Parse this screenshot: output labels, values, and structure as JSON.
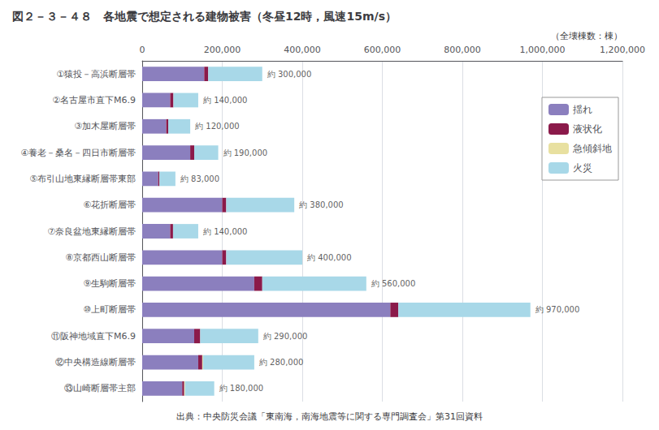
{
  "chart_data": {
    "type": "bar",
    "orientation": "horizontal",
    "stacked": true,
    "title": "図２－３－４８　各地震で想定される建物被害（冬昼12時，風速15m/s）",
    "xlabel": "（全壊棟数：棟）",
    "source": "出典：中央防災会議「東南海，南海地震等に関する専門調査会」第31回資料",
    "categories": [
      "①猿投－高浜断層帯",
      "②名古屋市直下M6.9",
      "③加木屋断層帯",
      "④養老－桑名－四日市断層帯",
      "⑤布引山地東縁断層帯東部",
      "⑥花折断層帯",
      "⑦奈良盆地東縁断層帯",
      "⑧京都西山断層帯",
      "⑨生駒断層帯",
      "⑩上町断層帯",
      "⑪阪神地域直下M6.9",
      "⑫中央構造線断層帯",
      "⑬山崎断層帯主部"
    ],
    "series": [
      {
        "name": "揺れ",
        "color": "#8B7FBE",
        "values": [
          155000,
          70000,
          60000,
          120000,
          40000,
          200000,
          70000,
          200000,
          280000,
          620000,
          130000,
          140000,
          100000
        ]
      },
      {
        "name": "液状化",
        "color": "#8B1A4A",
        "values": [
          10000,
          8000,
          5000,
          10000,
          3000,
          10000,
          7000,
          10000,
          20000,
          20000,
          15000,
          10000,
          5000
        ]
      },
      {
        "name": "急傾斜地",
        "color": "#E8E0A0",
        "values": [
          0,
          0,
          0,
          0,
          0,
          0,
          0,
          0,
          0,
          0,
          0,
          2000,
          2000
        ]
      },
      {
        "name": "火災",
        "color": "#A8D8E8",
        "values": [
          135000,
          62000,
          55000,
          60000,
          40000,
          170000,
          63000,
          190000,
          260000,
          330000,
          145000,
          128000,
          73000
        ]
      }
    ],
    "totals": {
      "values": [
        300000,
        140000,
        120000,
        190000,
        83000,
        380000,
        140000,
        400000,
        560000,
        970000,
        290000,
        280000,
        180000
      ],
      "value_labels": [
        "約 300,000",
        "約 140,000",
        "約 120,000",
        "約 190,000",
        "約 83,000",
        "約 380,000",
        "約 140,000",
        "約 400,000",
        "約 560,000",
        "約 970,000",
        "約 290,000",
        "約 280,000",
        "約 180,000"
      ]
    },
    "xlim": [
      0,
      1200000
    ],
    "xticks": [
      0,
      {
        "value": 200000,
        "label": "200,000"
      },
      {
        "value": 400000,
        "label": "400,000"
      },
      {
        "value": 600000,
        "label": "600,000"
      },
      {
        "value": 800000,
        "label": "800,000"
      },
      {
        "value": 1000000,
        "label": "1,000,000"
      },
      {
        "value": 1200000,
        "label": "1,200,000"
      }
    ],
    "grid": true,
    "legend": "upper right"
  }
}
